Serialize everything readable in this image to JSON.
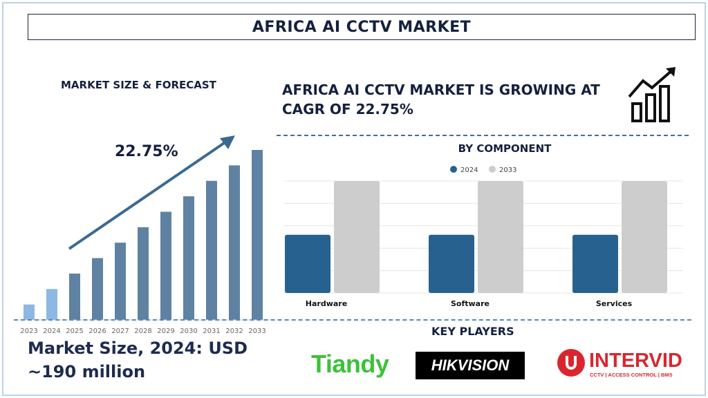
{
  "title": "AFRICA AI CCTV MARKET",
  "left": {
    "heading": "MARKET SIZE & FORECAST",
    "cagr_label": "22.75%",
    "market_size_line1": "Market Size, 2024: USD",
    "market_size_line2": "~190 million"
  },
  "right": {
    "headline_line1": "AFRICA AI CCTV MARKET IS GROWING AT",
    "headline_line2": "CAGR OF 22.75%",
    "key_players_heading": "KEY PLAYERS",
    "players": [
      "Tiandy",
      "HIKVISION",
      "INTERVID"
    ],
    "intervid_tagline": "CCTV | ACCESS CONTROL | BMS"
  },
  "chart_data": [
    {
      "type": "bar",
      "title": "MARKET SIZE & FORECAST",
      "categories": [
        "2023",
        "2024",
        "2025",
        "2026",
        "2027",
        "2028",
        "2029",
        "2030",
        "2031",
        "2032",
        "2033"
      ],
      "values": [
        1,
        2,
        3,
        4,
        5,
        6,
        7,
        8,
        9,
        10,
        11
      ],
      "value_note_hidden": null,
      "colors": {
        "historic": "#8cb8e2",
        "forecast": "#5f82a3",
        "arrow": "#3a6a93"
      },
      "ylim": [
        0,
        11
      ],
      "grid": false
    },
    {
      "type": "bar",
      "title": "BY COMPONENT",
      "categories": [
        "Hardware",
        "Software",
        "Services"
      ],
      "series": [
        {
          "name": "2024",
          "values": [
            2.6,
            2.6,
            2.6
          ],
          "color": "#27618f"
        },
        {
          "name": "2033",
          "values": [
            5,
            5,
            5
          ],
          "color": "#cdcdcd"
        }
      ],
      "ylim": [
        0,
        5
      ],
      "grid": true,
      "legend": "top-center"
    }
  ]
}
